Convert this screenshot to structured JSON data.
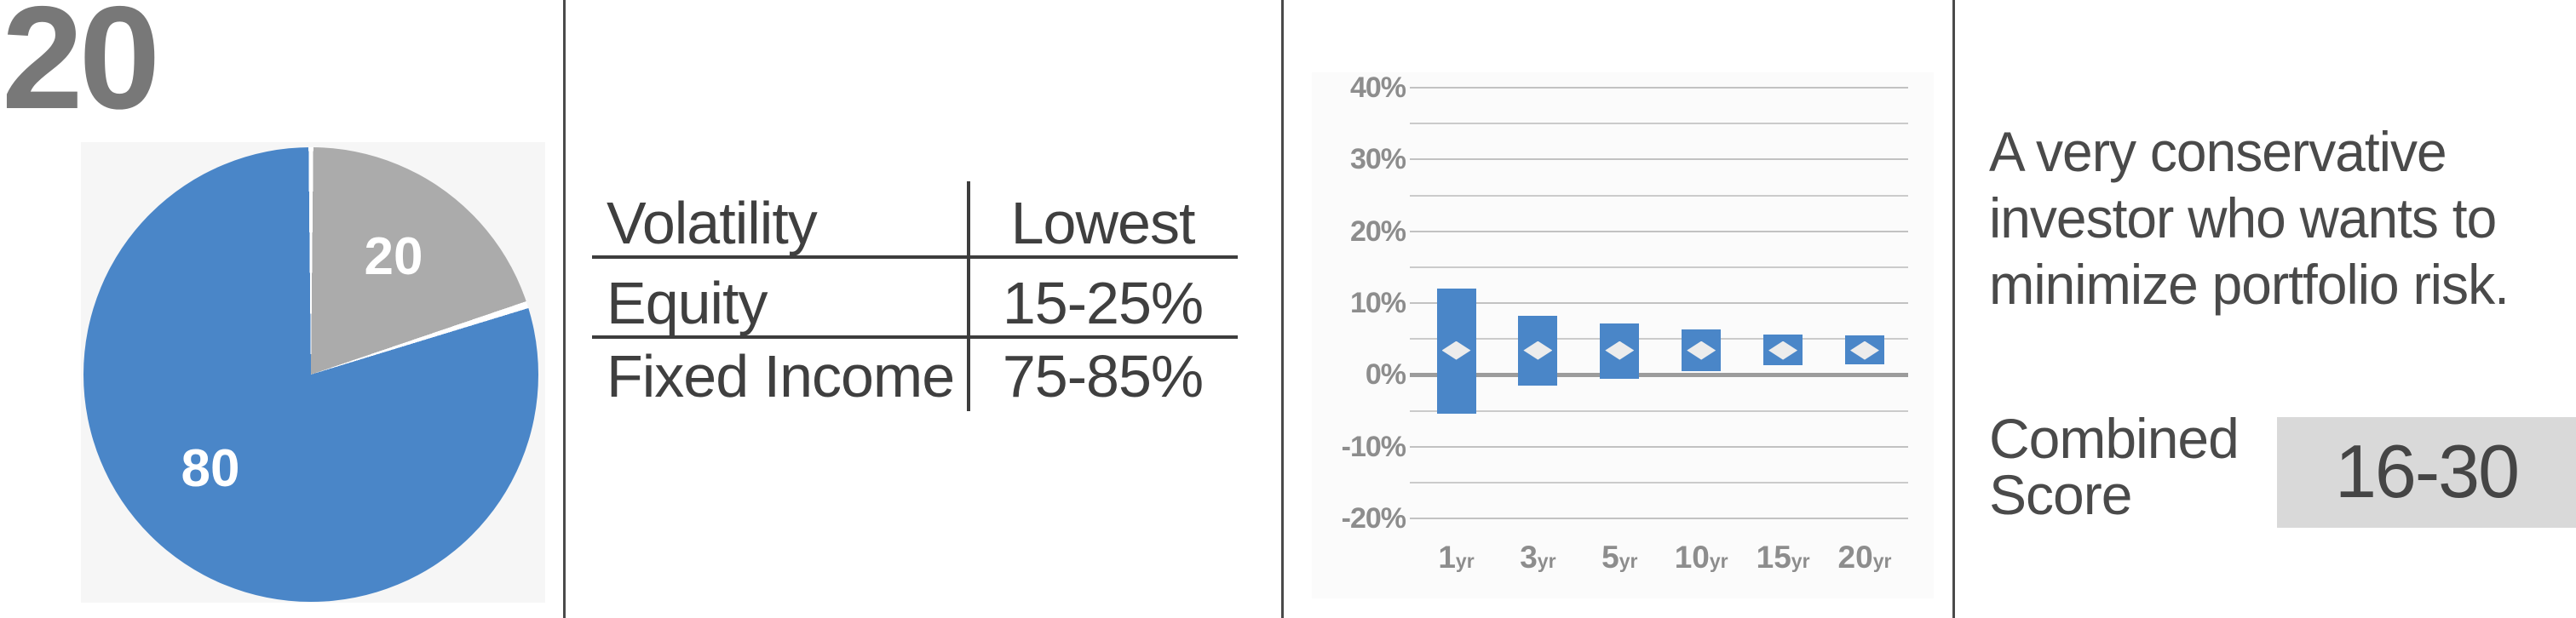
{
  "score_number": "20",
  "pie": {
    "blue_value_label": "80",
    "gray_value_label": "20",
    "blue_color": "#4a86c8",
    "gray_color": "#ababab"
  },
  "table": {
    "header": {
      "col1": "Volatility",
      "col2": "Lowest"
    },
    "rows": [
      {
        "col1": "Equity",
        "col2": "15-25%"
      },
      {
        "col1": "Fixed Income",
        "col2": "75-85%"
      }
    ]
  },
  "profile": {
    "description": "A very conservative investor who wants to minimize portfolio risk.",
    "description_lines": [
      "A very conservative",
      "investor who wants to",
      "minimize portfolio risk."
    ],
    "combined_score_label_line1": "Combined",
    "combined_score_label_line2": "Score",
    "combined_score_value": "16-30",
    "badge_bg": "#d9d9d9"
  },
  "chart_data": [
    {
      "type": "pie",
      "categories": [
        "blue-slice",
        "gray-slice"
      ],
      "values": [
        80,
        20
      ],
      "data_labels": [
        "80",
        "20"
      ],
      "colors": [
        "#4a86c8",
        "#ababab"
      ],
      "start": "gray slice starts at 12 o'clock, clockwise, white separators",
      "legend": "none"
    },
    {
      "type": "bar",
      "subtype": "floating-range-bars-with-median-marker",
      "categories": [
        "1yr",
        "3yr",
        "5yr",
        "10yr",
        "15yr",
        "20yr"
      ],
      "series": [
        {
          "name": "range_low_pct",
          "values": [
            -5.4,
            -1.5,
            -0.6,
            0.5,
            1.4,
            1.5
          ]
        },
        {
          "name": "range_high_pct",
          "values": [
            12.0,
            8.2,
            7.1,
            6.3,
            5.6,
            5.5
          ]
        },
        {
          "name": "median_marker_pct",
          "values": [
            3.4,
            3.4,
            3.4,
            3.4,
            3.4,
            3.4
          ]
        }
      ],
      "title": "",
      "xlabel": "",
      "ylabel": "",
      "ylim": [
        -20,
        40
      ],
      "ytick_labels": [
        "40%",
        "30%",
        "20%",
        "10%",
        "0%",
        "-10%",
        "-20%"
      ],
      "minor_grid_step_pct": 5,
      "grid": "horizontal gridlines on, zero axis emphasized",
      "bar_color": "#4a86c8",
      "marker": "white diamond",
      "legend_position": "none"
    },
    {
      "type": "table",
      "columns": [
        "Volatility",
        "Lowest"
      ],
      "rows": [
        [
          "Equity",
          "15-25%"
        ],
        [
          "Fixed Income",
          "75-85%"
        ]
      ]
    }
  ],
  "colors": {
    "big_score": "#787878",
    "divider": "#4a4a4a",
    "table_text": "#3f3f3f",
    "table_rule": "#3d3d3d",
    "axis_label": "#8d8d8d",
    "gridline_major": "#c2c2c2",
    "gridline_minor": "#cbcbcb",
    "zero_axis": "#9c9c9c",
    "description_text": "#4a4a4a",
    "badge_text": "#454545"
  }
}
